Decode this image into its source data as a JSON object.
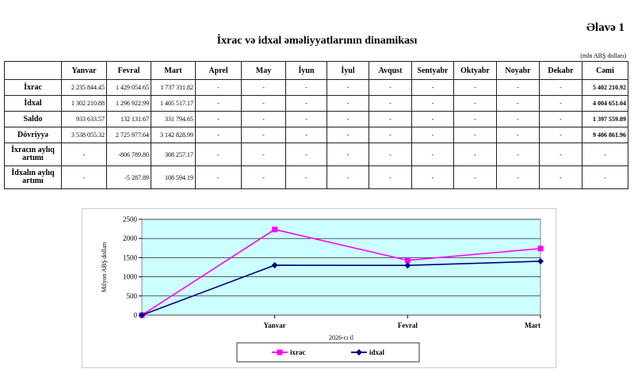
{
  "header": {
    "appendix": "Əlavə 1",
    "title": "İxrac və idxal əməliyyatlarının dinamikası",
    "unit": "(mln ABŞ dolları)"
  },
  "table": {
    "columns": [
      "",
      "Yanvar",
      "Fevral",
      "Mart",
      "Aprel",
      "May",
      "İyun",
      "İyul",
      "Avqust",
      "Sentyabr",
      "Oktyabr",
      "Noyabr",
      "Dekabr",
      "Cəmi"
    ],
    "rows": [
      {
        "label": "İxrac",
        "cells": [
          "2 235 844.45",
          "1 429 054.65",
          "1 737 311.82",
          "-",
          "-",
          "-",
          "-",
          "-",
          "-",
          "-",
          "-",
          "-",
          "5 402 210.92"
        ]
      },
      {
        "label": "İdxal",
        "cells": [
          "1 302 210.88",
          "1 296 922.99",
          "1 405 517.17",
          "-",
          "-",
          "-",
          "-",
          "-",
          "-",
          "-",
          "-",
          "-",
          "4 004 651.04"
        ]
      },
      {
        "label": "Saldo",
        "cells": [
          "933 633.57",
          "132 131.67",
          "331 794.65",
          "-",
          "-",
          "-",
          "-",
          "-",
          "-",
          "-",
          "-",
          "-",
          "1 397 559.89"
        ]
      },
      {
        "label": "Dövriyyə",
        "cells": [
          "3 538 055.32",
          "2 725 977.64",
          "3 142 828.99",
          "-",
          "-",
          "-",
          "-",
          "-",
          "-",
          "-",
          "-",
          "-",
          "9 406 861.96"
        ]
      },
      {
        "label": "İxracın aylıq artımı",
        "cells": [
          "-",
          "-806 789.80",
          "308 257.17",
          "-",
          "-",
          "-",
          "-",
          "-",
          "-",
          "-",
          "-",
          "-",
          "-"
        ]
      },
      {
        "label": "İdxalın aylıq artımı",
        "cells": [
          "-",
          "-5 287.89",
          "108 594.19",
          "-",
          "-",
          "-",
          "-",
          "-",
          "-",
          "-",
          "-",
          "-",
          "-"
        ]
      }
    ]
  },
  "chart_data": {
    "type": "line",
    "categories": [
      "",
      "Yanvar",
      "Fevral",
      "Mart"
    ],
    "series": [
      {
        "name": "ixrac",
        "values": [
          0,
          2235.8,
          1429.1,
          1737.3
        ],
        "color": "#ff00ff",
        "marker": "square"
      },
      {
        "name": "idxal",
        "values": [
          0,
          1302.2,
          1296.9,
          1405.5
        ],
        "color": "#000080",
        "marker": "diamond"
      }
    ],
    "xlabel": "2026-cı il",
    "ylabel": "Milyon ABŞ dolları",
    "ylim": [
      0,
      2500
    ],
    "yticks": [
      0,
      500,
      1000,
      1500,
      2000,
      2500
    ],
    "plot_background": "#ccffff",
    "grid": true,
    "legend": "bottom"
  }
}
